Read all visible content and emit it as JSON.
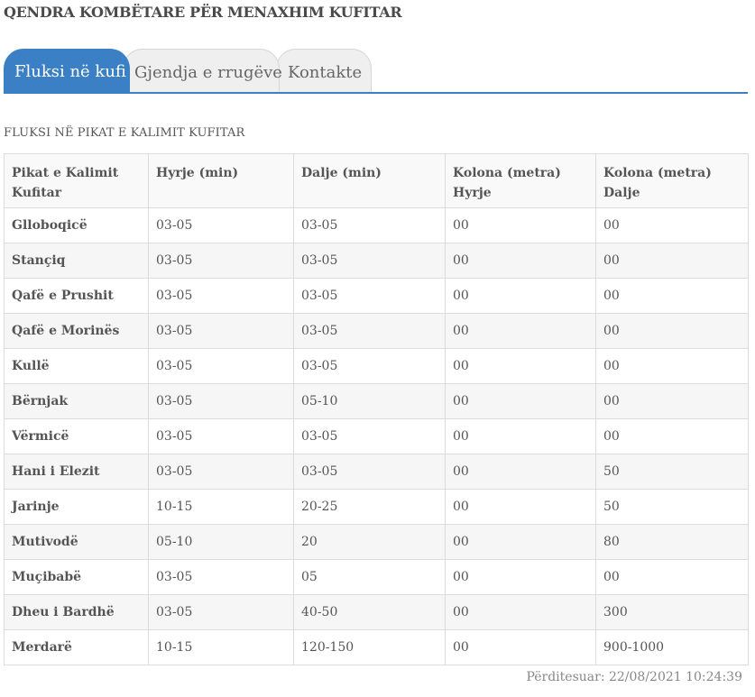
{
  "header": {
    "title": "QENDRA KOMBËTARE PËR MENAXHIM KUFITAR"
  },
  "tabs": [
    {
      "label": "Fluksi në kufi",
      "active": true
    },
    {
      "label": "Gjendja e rrugëve",
      "active": false
    },
    {
      "label": "Kontakte",
      "active": false
    }
  ],
  "section": {
    "title": "FLUKSI NË PIKAT E KALIMIT KUFITAR"
  },
  "table": {
    "headers": [
      "Pikat e Kalimit Kufitar",
      "Hyrje (min)",
      "Dalje (min)",
      "Kolona (metra) Hyrje",
      "Kolona (metra) Dalje"
    ],
    "rows": [
      [
        "Glloboqicë",
        "03-05",
        "03-05",
        "00",
        "00"
      ],
      [
        "Stançiq",
        "03-05",
        "03-05",
        "00",
        "00"
      ],
      [
        "Qafë e Prushit",
        "03-05",
        "03-05",
        "00",
        "00"
      ],
      [
        "Qafë e Morinës",
        "03-05",
        "03-05",
        "00",
        "00"
      ],
      [
        "Kullë",
        "03-05",
        "03-05",
        "00",
        "00"
      ],
      [
        "Bërnjak",
        "03-05",
        "05-10",
        "00",
        "00"
      ],
      [
        "Vërmicë",
        "03-05",
        "03-05",
        "00",
        "00"
      ],
      [
        "Hani i Elezit",
        "03-05",
        "03-05",
        "00",
        "50"
      ],
      [
        "Jarinje",
        "10-15",
        "20-25",
        "00",
        "50"
      ],
      [
        "Mutivodë",
        "05-10",
        "20",
        "00",
        "80"
      ],
      [
        "Muçibabë",
        "03-05",
        "05",
        "00",
        "00"
      ],
      [
        "Dheu i Bardhë",
        "03-05",
        "40-50",
        "00",
        "300"
      ],
      [
        "Merdarë",
        "10-15",
        "120-150",
        "00",
        "900-1000"
      ]
    ]
  },
  "footer": {
    "updated": "Përditesuar: 22/08/2021 10:24:39"
  },
  "colors": {
    "accent": "#3b7fc4",
    "tab_inactive": "#efefef",
    "border": "#dcdcdc"
  }
}
